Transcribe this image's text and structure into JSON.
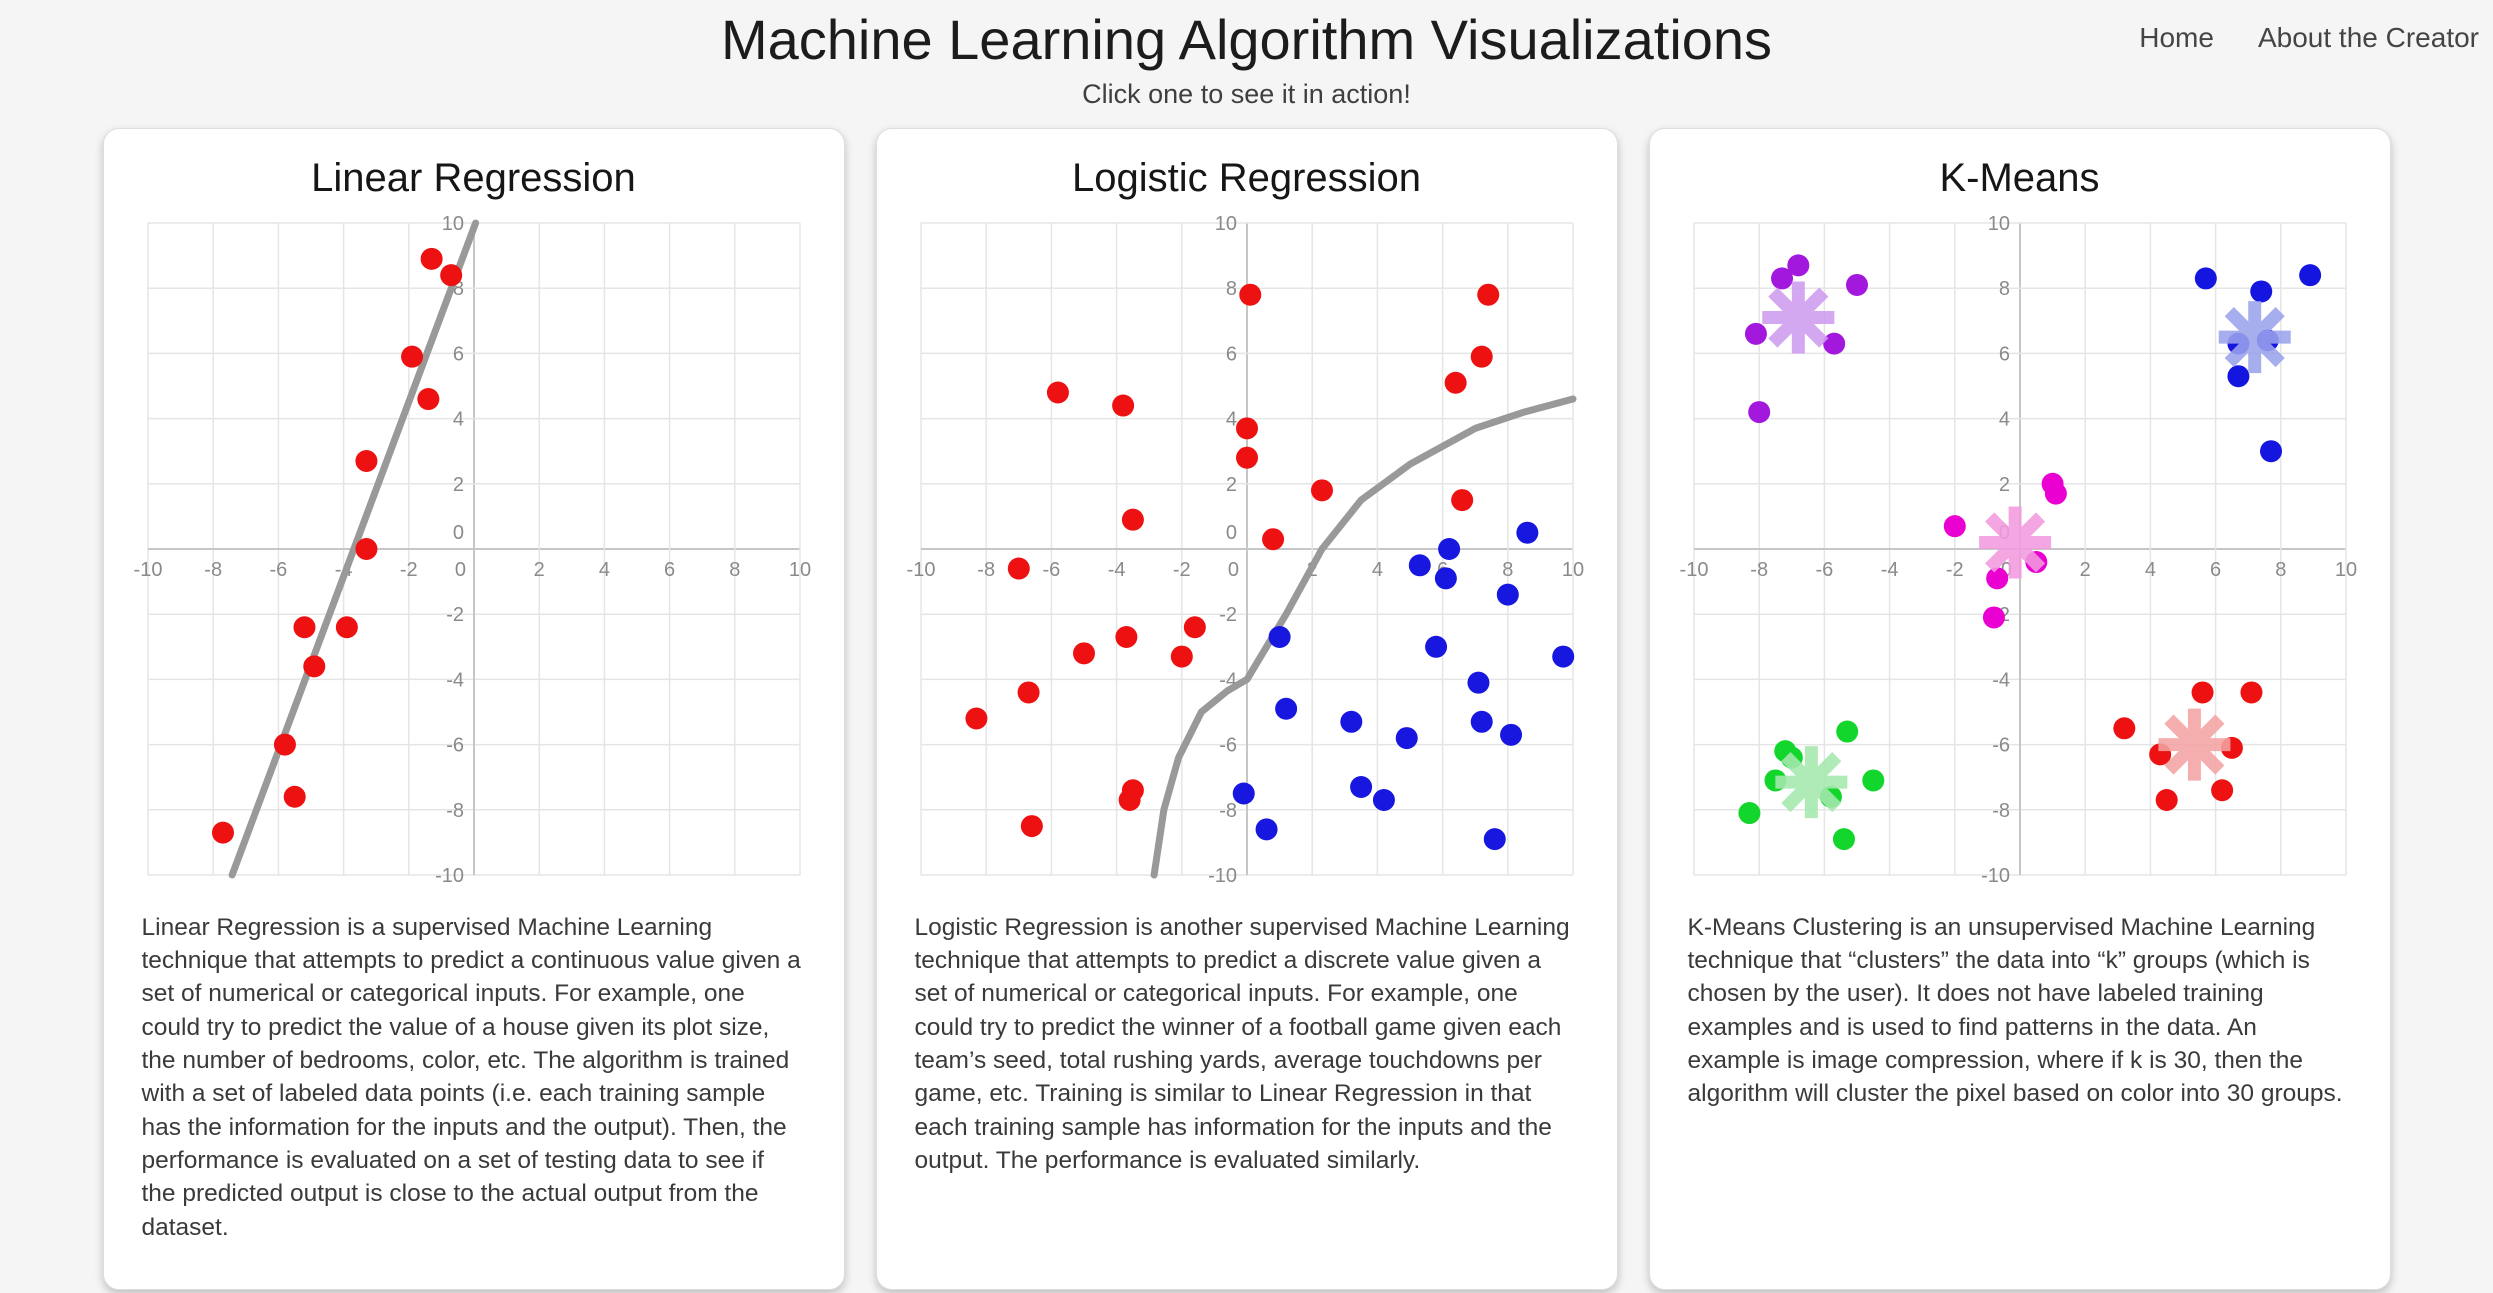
{
  "page": {
    "title": "Machine Learning Algorithm Visualizations",
    "subtitle": "Click one to see it in action!",
    "nav": [
      {
        "label": "Home"
      },
      {
        "label": "About the Creator"
      }
    ]
  },
  "cards": [
    {
      "title": "Linear Regression",
      "description": "Linear Regression is a supervised Machine Learning technique that attempts to predict a continuous value given a set of numerical or categorical inputs. For example, one could try to predict the value of a house given its plot size, the number of bedrooms, color, etc. The algorithm is trained with a set of labeled data points (i.e. each training sample has the information for the inputs and the output). Then, the performance is evaluated on a set of testing data to see if the predicted output is close to the actual output from the dataset."
    },
    {
      "title": "Logistic Regression",
      "description": "Logistic Regression is another supervised Machine Learning technique that attempts to predict a discrete value given a set of numerical or categorical inputs. For example, one could try to predict the winner of a football game given each team’s seed, total rushing yards, average touchdowns per game, etc. Training is similar to Linear Regression in that each training sample has information for the inputs and the output. The performance is evaluated similarly."
    },
    {
      "title": "K-Means",
      "description": "K-Means Clustering is an unsupervised Machine Learning technique that “clusters” the data into “k” groups (which is chosen by the user). It does not have labeled training examples and is used to find patterns in the data. An example is image compression, where if k is 30, then the algorithm will cluster the pixel based on color into 30 groups."
    }
  ],
  "chart_style": {
    "grid_color": "#e5e5e5",
    "zero_axis_color": "#c6c6c6",
    "tick_label_color": "#8a8a8a",
    "trend_line_color": "#999999"
  },
  "chart_data": [
    {
      "type": "scatter",
      "title": "Linear Regression",
      "axis": {
        "xlim": [
          -10,
          10
        ],
        "ylim": [
          -10,
          10
        ],
        "tick_step": 2,
        "grid": true
      },
      "series": [
        {
          "name": "training-points",
          "color": "#ee1111",
          "points": [
            [
              -7.7,
              -8.7
            ],
            [
              -5.5,
              -7.6
            ],
            [
              -5.8,
              -6.0
            ],
            [
              -4.9,
              -3.6
            ],
            [
              -5.2,
              -2.4
            ],
            [
              -3.9,
              -2.4
            ],
            [
              -3.3,
              0.0
            ],
            [
              -3.3,
              2.7
            ],
            [
              -1.4,
              4.6
            ],
            [
              -1.9,
              5.9
            ],
            [
              -0.7,
              8.4
            ],
            [
              -1.3,
              8.9
            ]
          ]
        }
      ],
      "lines": [
        {
          "name": "regression-line",
          "color": "#999999",
          "width": 7,
          "points": [
            [
              -7.42,
              -10
            ],
            [
              0.05,
              10
            ]
          ]
        }
      ]
    },
    {
      "type": "scatter",
      "title": "Logistic Regression",
      "axis": {
        "xlim": [
          -10,
          10
        ],
        "ylim": [
          -10,
          10
        ],
        "tick_step": 2,
        "grid": true
      },
      "series": [
        {
          "name": "class-red",
          "color": "#ee1111",
          "points": [
            [
              0.1,
              7.8
            ],
            [
              7.4,
              7.8
            ],
            [
              7.2,
              5.9
            ],
            [
              6.4,
              5.1
            ],
            [
              -5.8,
              4.8
            ],
            [
              -3.8,
              4.4
            ],
            [
              0,
              3.7
            ],
            [
              0,
              2.8
            ],
            [
              2.3,
              1.8
            ],
            [
              6.6,
              1.5
            ],
            [
              -3.5,
              0.9
            ],
            [
              0.8,
              0.3
            ],
            [
              -7,
              -0.6
            ],
            [
              -1.6,
              -2.4
            ],
            [
              -3.7,
              -2.7
            ],
            [
              -5,
              -3.2
            ],
            [
              -2,
              -3.3
            ],
            [
              -6.7,
              -4.4
            ],
            [
              -8.3,
              -5.2
            ],
            [
              -3.5,
              -7.4
            ],
            [
              -3.6,
              -7.7
            ],
            [
              -6.6,
              -8.5
            ]
          ]
        },
        {
          "name": "class-blue",
          "color": "#1717e0",
          "points": [
            [
              8.6,
              0.5
            ],
            [
              6.2,
              0
            ],
            [
              5.3,
              -0.5
            ],
            [
              6.1,
              -0.9
            ],
            [
              8,
              -1.4
            ],
            [
              1,
              -2.7
            ],
            [
              5.8,
              -3
            ],
            [
              9.7,
              -3.3
            ],
            [
              7.1,
              -4.1
            ],
            [
              1.2,
              -4.9
            ],
            [
              3.2,
              -5.3
            ],
            [
              7.2,
              -5.3
            ],
            [
              4.9,
              -5.8
            ],
            [
              8.1,
              -5.7
            ],
            [
              -0.1,
              -7.5
            ],
            [
              3.5,
              -7.3
            ],
            [
              4.2,
              -7.7
            ],
            [
              0.6,
              -8.6
            ],
            [
              7.6,
              -8.9
            ]
          ]
        }
      ],
      "lines": [
        {
          "name": "decision-boundary",
          "color": "#999999",
          "width": 7,
          "points": [
            [
              -2.85,
              -10
            ],
            [
              -2.55,
              -8
            ],
            [
              -2.1,
              -6.4
            ],
            [
              -1.4,
              -5.0
            ],
            [
              -0.6,
              -4.35
            ],
            [
              0,
              -4.0
            ],
            [
              1.2,
              -2.0
            ],
            [
              2.3,
              0
            ],
            [
              3.5,
              1.5
            ],
            [
              5,
              2.6
            ],
            [
              7,
              3.7
            ],
            [
              8.5,
              4.2
            ],
            [
              10,
              4.6
            ]
          ]
        }
      ]
    },
    {
      "type": "scatter",
      "title": "K-Means",
      "axis": {
        "xlim": [
          -10,
          10
        ],
        "ylim": [
          -10,
          10
        ],
        "tick_step": 2,
        "grid": true
      },
      "series": [
        {
          "name": "cluster-purple",
          "color": "#a218dd",
          "points": [
            [
              -6.8,
              8.7
            ],
            [
              -7.3,
              8.3
            ],
            [
              -5,
              8.1
            ],
            [
              -8.1,
              6.6
            ],
            [
              -5.7,
              6.3
            ],
            [
              -8,
              4.2
            ]
          ],
          "centroid": {
            "x": -6.8,
            "y": 7.1,
            "color": "#cf9bf0"
          }
        },
        {
          "name": "cluster-blue",
          "color": "#1515e0",
          "points": [
            [
              5.7,
              8.3
            ],
            [
              8.9,
              8.4
            ],
            [
              7.4,
              7.9
            ],
            [
              7.6,
              6.4
            ],
            [
              6.7,
              6.3
            ],
            [
              6.7,
              5.3
            ],
            [
              7.7,
              3.0
            ]
          ],
          "centroid": {
            "x": 7.2,
            "y": 6.5,
            "color": "#9aa3ec"
          }
        },
        {
          "name": "cluster-magenta",
          "color": "#ea00d0",
          "points": [
            [
              1.0,
              2.0
            ],
            [
              1.1,
              1.7
            ],
            [
              -2,
              0.7
            ],
            [
              0.5,
              -0.4
            ],
            [
              -0.7,
              -0.9
            ],
            [
              -0.8,
              -2.1
            ]
          ],
          "centroid": {
            "x": -0.15,
            "y": 0.2,
            "color": "#f29ade"
          }
        },
        {
          "name": "cluster-green",
          "color": "#12d62c",
          "points": [
            [
              -5.3,
              -5.6
            ],
            [
              -7.2,
              -6.2
            ],
            [
              -7,
              -6.4
            ],
            [
              -7.5,
              -7.1
            ],
            [
              -4.5,
              -7.1
            ],
            [
              -5.8,
              -7.6
            ],
            [
              -8.3,
              -8.1
            ],
            [
              -5.4,
              -8.9
            ]
          ],
          "centroid": {
            "x": -6.4,
            "y": -7.15,
            "color": "#a5e9ad"
          }
        },
        {
          "name": "cluster-red",
          "color": "#ee1111",
          "points": [
            [
              3.2,
              -5.5
            ],
            [
              5.6,
              -4.4
            ],
            [
              7.1,
              -4.4
            ],
            [
              4.3,
              -6.3
            ],
            [
              6.5,
              -6.1
            ],
            [
              4.5,
              -7.7
            ],
            [
              6.2,
              -7.4
            ]
          ],
          "centroid": {
            "x": 5.35,
            "y": -6.0,
            "color": "#f4a3a3"
          }
        }
      ]
    }
  ]
}
